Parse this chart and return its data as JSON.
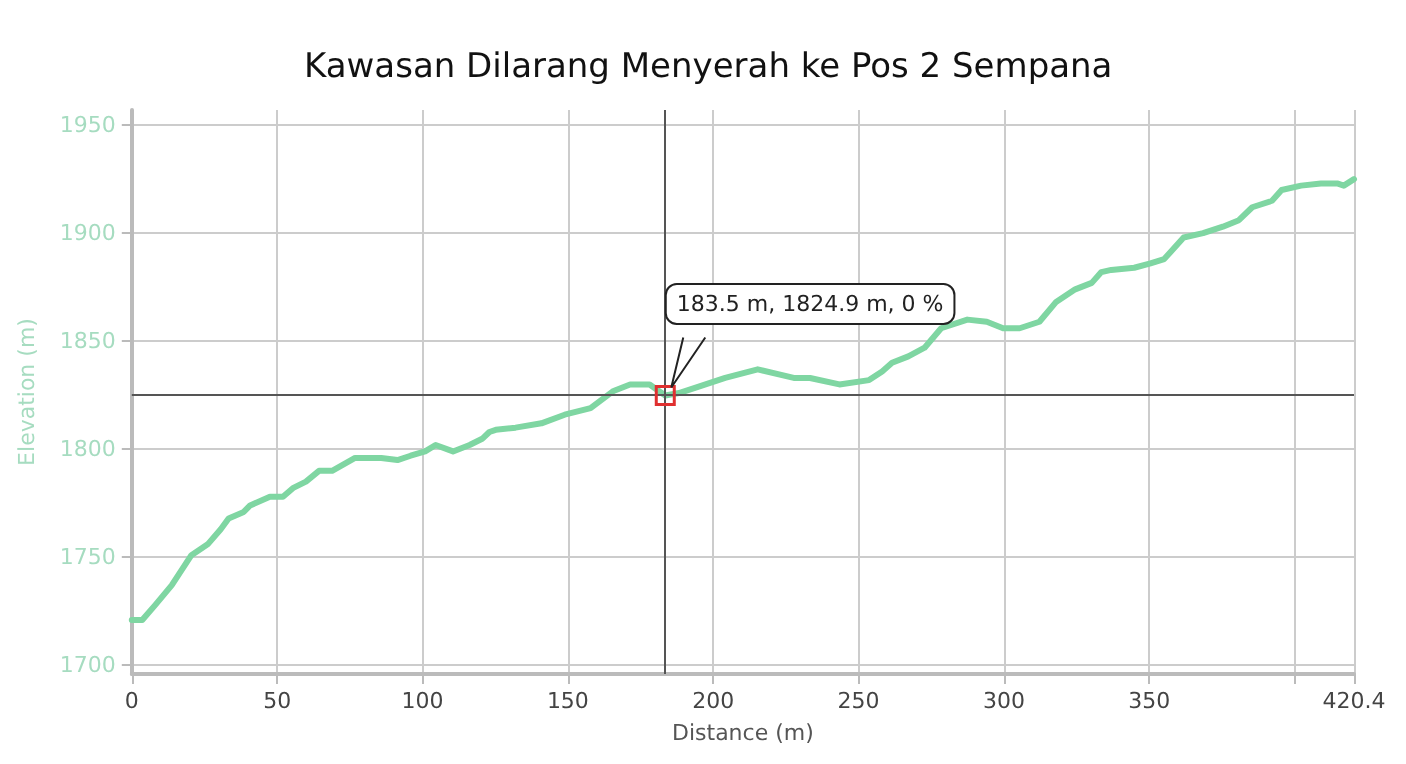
{
  "chart_data": {
    "type": "line",
    "title": "Kawasan Dilarang Menyerah ke Pos 2 Sempana",
    "xlabel": "Distance (m)",
    "ylabel": "Elevation (m)",
    "x": [
      0,
      3.6,
      8.1,
      13.7,
      20.5,
      26.1,
      30.6,
      33.3,
      38.5,
      40.7,
      47.5,
      52,
      55.4,
      59.9,
      64.4,
      68.9,
      76.8,
      85.8,
      91.4,
      95.9,
      100.9,
      104.5,
      110.5,
      116.2,
      120.7,
      123,
      125.2,
      132,
      140.9,
      148.9,
      157.8,
      165.7,
      171.4,
      178.1,
      183.5,
      188.2,
      195,
      204.1,
      215.3,
      227.7,
      233.3,
      243.4,
      253.6,
      258.1,
      261.5,
      267.1,
      272.7,
      278.4,
      287.4,
      294.1,
      299.7,
      305.4,
      312.2,
      317.8,
      324.5,
      330.2,
      333.5,
      336.9,
      344.8,
      350.4,
      355.1,
      361.8,
      368.5,
      375.3,
      380.8,
      385.4,
      392.2,
      395.5,
      402.2,
      409,
      414.6,
      416.9,
      420.4
    ],
    "series": [
      {
        "color": "#7fd6a2",
        "values": [
          1721,
          1721,
          1728,
          1737,
          1751,
          1756,
          1763,
          1768,
          1771,
          1774,
          1778,
          1778,
          1782,
          1785,
          1790,
          1790,
          1796,
          1796,
          1795,
          1797,
          1799,
          1802,
          1799,
          1802,
          1805,
          1808,
          1809,
          1810,
          1812,
          1816,
          1819,
          1827,
          1830,
          1830,
          1824.9,
          1826,
          1829,
          1833,
          1837,
          1833,
          1833,
          1830,
          1832,
          1836,
          1840,
          1843,
          1847,
          1856,
          1860,
          1859,
          1856,
          1856,
          1859,
          1868,
          1874,
          1877,
          1882,
          1883,
          1884,
          1886,
          1888,
          1898,
          1900,
          1903,
          1906,
          1912,
          1915,
          1920,
          1922,
          1923,
          1923,
          1922,
          1925
        ]
      }
    ],
    "xlim": [
      0,
      420.4
    ],
    "xticks": [
      0,
      50,
      100,
      150,
      200,
      250,
      300,
      350,
      {
        "value": 400,
        "label": null
      },
      420.4
    ],
    "ylim": [
      1696,
      1957
    ],
    "yticks": [
      1700,
      1750,
      1800,
      1850,
      1900,
      1950
    ],
    "ref_lines": [
      {
        "axis": "x",
        "value": 183.5,
        "color": "#555555"
      },
      {
        "axis": "y",
        "value": 1824.9,
        "color": "#555555"
      }
    ],
    "annotations": [
      {
        "text": "183.5 m, 1824.9 m, 0 %",
        "x": 183.5,
        "y": 1824.9
      }
    ],
    "grid": true,
    "marker": "none",
    "line_style": "solid"
  }
}
